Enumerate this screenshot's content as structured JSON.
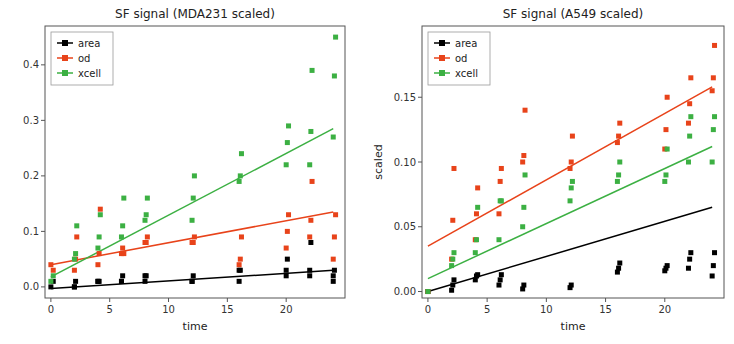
{
  "chart_data": [
    {
      "type": "scatter",
      "title": "SF signal (MDA231 scaled)",
      "xlabel": "time",
      "xlim": [
        -0.5,
        25
      ],
      "xticks": [
        0,
        5,
        10,
        15,
        20
      ],
      "ylim": [
        -0.02,
        0.47
      ],
      "yticks": [
        {
          "value": 0.0,
          "label": "0.0"
        },
        0.1,
        0.2,
        0.3,
        0.4
      ],
      "grid": false,
      "legend": "upper-left",
      "series": [
        {
          "name": "area",
          "color": "#000000",
          "marker": "square",
          "x": [
            0,
            0.2,
            2,
            2,
            2.1,
            4,
            4,
            4.1,
            6,
            6,
            6.1,
            8,
            8,
            8.1,
            12,
            12,
            12.1,
            16,
            16,
            16.1,
            20,
            20,
            20.1,
            22,
            22,
            22.1,
            24,
            24,
            24.1
          ],
          "values": [
            0.0,
            0.01,
            0.0,
            0.0,
            0.01,
            0.01,
            0.01,
            0.01,
            0.01,
            0.01,
            0.02,
            0.01,
            0.02,
            0.02,
            0.01,
            0.01,
            0.02,
            0.01,
            0.03,
            0.03,
            0.02,
            0.03,
            0.05,
            0.02,
            0.03,
            0.08,
            0.01,
            0.02,
            0.03
          ],
          "fit": {
            "x": [
              0,
              24
            ],
            "values": [
              -0.003,
              0.03
            ]
          }
        },
        {
          "name": "od",
          "color": "#E8431A",
          "marker": "square",
          "x": [
            0,
            0.2,
            2,
            2.1,
            2.2,
            4,
            4.1,
            4.2,
            6,
            6.1,
            6.2,
            8,
            8.1,
            8.2,
            12,
            12.1,
            12.2,
            16,
            16.1,
            16.2,
            20,
            20.1,
            20.2,
            22,
            22.1,
            22.2,
            24,
            24.1,
            24.2
          ],
          "values": [
            0.04,
            0.03,
            0.03,
            0.05,
            0.09,
            0.04,
            0.06,
            0.14,
            0.06,
            0.07,
            0.06,
            0.08,
            0.08,
            0.09,
            0.08,
            0.08,
            0.09,
            0.04,
            0.05,
            0.09,
            0.07,
            0.1,
            0.13,
            0.09,
            0.12,
            0.19,
            0.05,
            0.09,
            0.13
          ],
          "fit": {
            "x": [
              0,
              24
            ],
            "values": [
              0.04,
              0.135
            ]
          }
        },
        {
          "name": "xcell",
          "color": "#3CB043",
          "marker": "square",
          "x": [
            0,
            0.2,
            2,
            2.1,
            2.2,
            4,
            4.1,
            4.2,
            6,
            6.1,
            6.2,
            8,
            8.1,
            8.2,
            12,
            12.1,
            12.2,
            16,
            16.1,
            16.2,
            20,
            20.1,
            20.2,
            22,
            22.1,
            22.2,
            24,
            24.1,
            24.2
          ],
          "values": [
            0.01,
            0.02,
            0.05,
            0.06,
            0.11,
            0.07,
            0.09,
            0.13,
            0.09,
            0.11,
            0.16,
            0.12,
            0.13,
            0.16,
            0.12,
            0.16,
            0.2,
            0.19,
            0.2,
            0.24,
            0.22,
            0.26,
            0.29,
            0.22,
            0.28,
            0.39,
            0.27,
            0.38,
            0.45
          ],
          "fit": {
            "x": [
              0,
              24
            ],
            "values": [
              0.018,
              0.285
            ]
          }
        }
      ]
    },
    {
      "type": "scatter",
      "title": "SF signal (A549 scaled)",
      "xlabel": "time",
      "ylabel": "scaled",
      "xlim": [
        -0.5,
        25
      ],
      "xticks": [
        0,
        5,
        10,
        15,
        20
      ],
      "ylim": [
        -0.005,
        0.205
      ],
      "yticks": [
        {
          "value": 0.0,
          "label": "0.00"
        },
        0.05,
        {
          "value": 0.1,
          "label": "0.10"
        },
        {
          "value": 0.15,
          "label": "0.15"
        }
      ],
      "grid": false,
      "legend": "upper-left",
      "series": [
        {
          "name": "area",
          "color": "#000000",
          "marker": "square",
          "x": [
            0,
            2,
            2.1,
            2.2,
            4,
            4.1,
            4.2,
            6,
            6.1,
            6.2,
            8,
            8.1,
            12,
            12.1,
            16,
            16.1,
            16.2,
            20,
            20.1,
            20.2,
            22,
            22.1,
            22.2,
            24,
            24.1,
            24.2
          ],
          "values": [
            0.0,
            0.001,
            0.005,
            0.009,
            0.009,
            0.012,
            0.013,
            0.005,
            0.009,
            0.013,
            0.002,
            0.005,
            0.003,
            0.005,
            0.015,
            0.018,
            0.022,
            0.016,
            0.018,
            0.02,
            0.018,
            0.025,
            0.03,
            0.012,
            0.02,
            0.03
          ],
          "fit": {
            "x": [
              0,
              24
            ],
            "values": [
              0.0,
              0.065
            ]
          }
        },
        {
          "name": "od",
          "color": "#E8431A",
          "marker": "square",
          "x": [
            0,
            2,
            2.1,
            2.2,
            4,
            4.1,
            4.2,
            6,
            6.1,
            6.2,
            8,
            8.1,
            8.2,
            12,
            12.1,
            12.2,
            16,
            16.1,
            16.2,
            20,
            20.1,
            20.2,
            22,
            22.1,
            22.2,
            24,
            24.1,
            24.2
          ],
          "values": [
            0.0,
            0.025,
            0.055,
            0.095,
            0.04,
            0.06,
            0.08,
            0.06,
            0.085,
            0.095,
            0.1,
            0.105,
            0.14,
            0.095,
            0.1,
            0.12,
            0.115,
            0.12,
            0.13,
            0.11,
            0.125,
            0.15,
            0.13,
            0.145,
            0.165,
            0.155,
            0.165,
            0.19
          ],
          "fit": {
            "x": [
              0,
              24
            ],
            "values": [
              0.035,
              0.158
            ]
          }
        },
        {
          "name": "xcell",
          "color": "#3CB043",
          "marker": "square",
          "x": [
            0,
            2,
            2.1,
            2.2,
            4,
            4.1,
            4.2,
            6,
            6.1,
            6.2,
            8,
            8.1,
            8.2,
            12,
            12.1,
            12.2,
            16,
            16.1,
            16.2,
            20,
            20.1,
            20.2,
            22,
            22.1,
            22.2,
            24,
            24.1,
            24.2
          ],
          "values": [
            0.0,
            0.02,
            0.025,
            0.03,
            0.03,
            0.04,
            0.065,
            0.04,
            0.07,
            0.07,
            0.05,
            0.065,
            0.09,
            0.07,
            0.08,
            0.085,
            0.085,
            0.09,
            0.1,
            0.085,
            0.09,
            0.11,
            0.1,
            0.12,
            0.135,
            0.1,
            0.125,
            0.135
          ],
          "fit": {
            "x": [
              0,
              24
            ],
            "values": [
              0.01,
              0.112
            ]
          }
        }
      ]
    }
  ]
}
